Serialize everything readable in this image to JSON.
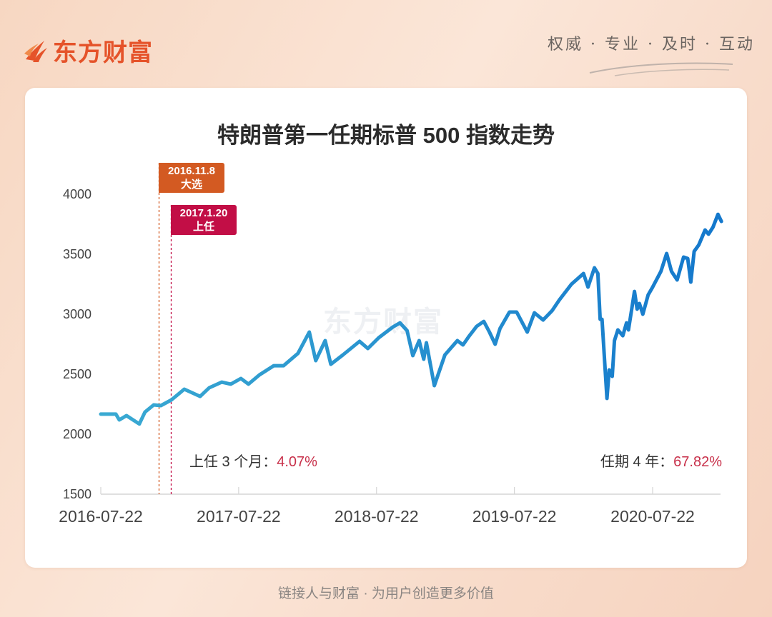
{
  "header": {
    "logo_text": "东方财富",
    "slogan": "权威 · 专业 · 及时 · 互动",
    "brand_color": "#e5532a"
  },
  "watermark": "东方财富",
  "footer": "链接人与财富 · 为用户创造更多价值",
  "annotations": {
    "left_label": "上任 3 个月：",
    "left_value": "4.07%",
    "right_label": "任期 4 年：",
    "right_value": "67.82%",
    "value_color": "#c8304a"
  },
  "markers": [
    {
      "date": "2016.11.8",
      "label": "大选",
      "color": "#d35a22"
    },
    {
      "date": "2017.1.20",
      "label": "上任",
      "color": "#c20e46"
    }
  ],
  "chart_data": {
    "type": "line",
    "title": "特朗普第一任期标普 500 指数走势",
    "xlabel": "",
    "ylabel": "",
    "ylim": [
      1500,
      4000
    ],
    "yticks": [
      "1500",
      "2000",
      "2500",
      "3000",
      "3500",
      "4000"
    ],
    "xticks": [
      "2016-07-22",
      "2017-07-22",
      "2018-07-22",
      "2019-07-22",
      "2020-07-22"
    ],
    "grid": false,
    "line_colors": [
      "#3aaad2",
      "#1478cc"
    ],
    "x": [
      "2016-07-22",
      "2016-08-31",
      "2016-09-09",
      "2016-09-28",
      "2016-11-01",
      "2016-11-16",
      "2016-12-09",
      "2016-12-28",
      "2017-01-25",
      "2017-02-28",
      "2017-04-11",
      "2017-05-05",
      "2017-06-07",
      "2017-07-01",
      "2017-07-28",
      "2017-08-17",
      "2017-09-15",
      "2017-10-23",
      "2017-11-18",
      "2017-12-26",
      "2018-01-25",
      "2018-02-11",
      "2018-03-08",
      "2018-03-23",
      "2018-04-24",
      "2018-06-07",
      "2018-06-29",
      "2018-07-28",
      "2018-09-03",
      "2018-09-22",
      "2018-10-11",
      "2018-10-26",
      "2018-11-12",
      "2018-11-24",
      "2018-12-01",
      "2018-12-22",
      "2019-01-19",
      "2019-02-21",
      "2019-03-08",
      "2019-03-25",
      "2019-04-13",
      "2019-05-02",
      "2019-05-17",
      "2019-06-01",
      "2019-06-14",
      "2019-07-09",
      "2019-07-28",
      "2019-08-25",
      "2019-09-13",
      "2019-10-06",
      "2019-10-30",
      "2019-11-18",
      "2019-12-20",
      "2020-01-21",
      "2020-02-02",
      "2020-02-19",
      "2020-02-28",
      "2020-03-05",
      "2020-03-10",
      "2020-03-23",
      "2020-03-29",
      "2020-04-06",
      "2020-04-12",
      "2020-04-21",
      "2020-05-04",
      "2020-05-14",
      "2020-05-19",
      "2020-06-04",
      "2020-06-11",
      "2020-06-17",
      "2020-06-26",
      "2020-07-10",
      "2020-07-21",
      "2020-08-13",
      "2020-08-28",
      "2020-09-10",
      "2020-09-25",
      "2020-10-12",
      "2020-10-23",
      "2020-10-31",
      "2020-11-09",
      "2020-11-21",
      "2020-12-08",
      "2020-12-17",
      "2020-12-29",
      "2021-01-11",
      "2021-01-20"
    ],
    "values": [
      2167,
      2167,
      2119,
      2155,
      2085,
      2184,
      2244,
      2238,
      2286,
      2375,
      2315,
      2387,
      2434,
      2417,
      2464,
      2417,
      2494,
      2571,
      2571,
      2673,
      2851,
      2613,
      2780,
      2583,
      2661,
      2774,
      2714,
      2804,
      2893,
      2928,
      2863,
      2655,
      2780,
      2625,
      2762,
      2405,
      2661,
      2780,
      2744,
      2821,
      2899,
      2940,
      2851,
      2750,
      2881,
      3018,
      3018,
      2851,
      3012,
      2952,
      3030,
      3119,
      3250,
      3339,
      3226,
      3387,
      3339,
      2958,
      2958,
      2298,
      2536,
      2482,
      2780,
      2869,
      2821,
      2928,
      2869,
      3190,
      3042,
      3089,
      3000,
      3161,
      3220,
      3357,
      3506,
      3357,
      3286,
      3476,
      3464,
      3268,
      3524,
      3577,
      3702,
      3667,
      3726,
      3833,
      3774
    ]
  }
}
